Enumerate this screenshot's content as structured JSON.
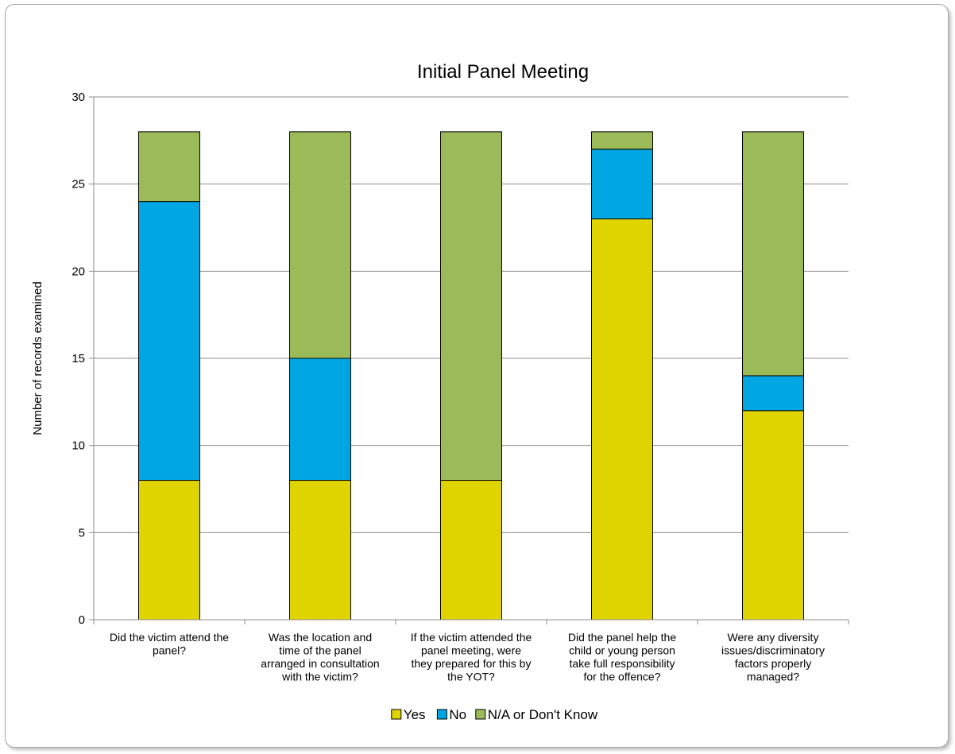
{
  "chart_data": {
    "type": "bar",
    "stacked": true,
    "title": "Initial Panel Meeting",
    "xlabel": "",
    "ylabel": "Number of records examined",
    "ylim": [
      0,
      30
    ],
    "yticks": [
      0,
      5,
      10,
      15,
      20,
      25,
      30
    ],
    "grid": true,
    "legend_position": "bottom",
    "categories": [
      [
        "Did the victim attend the",
        "panel?"
      ],
      [
        "Was the location and",
        "time of the panel",
        "arranged in consultation",
        "with the victim?"
      ],
      [
        "If the victim attended the",
        "panel meeting, were",
        "they prepared for this by",
        "the YOT?"
      ],
      [
        "Did the panel help the",
        "child or young person",
        "take full responsibility",
        "for the offence?"
      ],
      [
        "Were any diversity",
        "issues/discriminatory",
        "factors properly",
        "managed?"
      ]
    ],
    "series": [
      {
        "name": "Yes",
        "color": "#e0d400",
        "values": [
          8,
          8,
          8,
          23,
          12
        ]
      },
      {
        "name": "No",
        "color": "#00a6e2",
        "values": [
          16,
          7,
          0,
          4,
          2
        ]
      },
      {
        "name": "N/A or Don't Know",
        "color": "#9bbb59",
        "values": [
          4,
          13,
          20,
          1,
          14
        ]
      }
    ]
  }
}
